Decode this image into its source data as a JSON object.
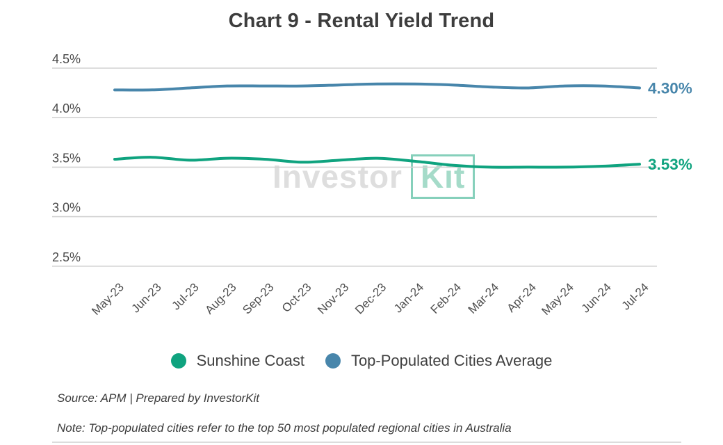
{
  "title": "Chart 9 - Rental Yield Trend",
  "watermark": {
    "part1": "Investor",
    "part2": "Kit"
  },
  "chart_data": {
    "type": "line",
    "title": "Chart 9 - Rental Yield Trend",
    "categories": [
      "May-23",
      "Jun-23",
      "Jul-23",
      "Aug-23",
      "Sep-23",
      "Oct-23",
      "Nov-23",
      "Dec-23",
      "Jan-24",
      "Feb-24",
      "Mar-24",
      "Apr-24",
      "May-24",
      "Jun-24",
      "Jul-24"
    ],
    "series": [
      {
        "name": "Sunshine Coast",
        "color": "#0fa37f",
        "end_label": "3.53%",
        "values": [
          3.58,
          3.6,
          3.57,
          3.59,
          3.58,
          3.55,
          3.57,
          3.59,
          3.56,
          3.52,
          3.5,
          3.5,
          3.5,
          3.51,
          3.53
        ]
      },
      {
        "name": "Top-Populated Cities Average",
        "color": "#4886ab",
        "end_label": "4.30%",
        "values": [
          4.28,
          4.28,
          4.3,
          4.32,
          4.32,
          4.32,
          4.33,
          4.34,
          4.34,
          4.33,
          4.31,
          4.3,
          4.32,
          4.32,
          4.3
        ]
      }
    ],
    "yticks": [
      {
        "label": "4.5%",
        "value": 4.5
      },
      {
        "label": "4.0%",
        "value": 4.0
      },
      {
        "label": "3.5%",
        "value": 3.5
      },
      {
        "label": "3.0%",
        "value": 3.0
      },
      {
        "label": "2.5%",
        "value": 2.5
      }
    ],
    "ylim": [
      2.5,
      4.5
    ],
    "xlabel": "",
    "ylabel": "",
    "grid": "horizontal",
    "legend_position": "bottom",
    "x_label_rotation": -45
  },
  "legend": {
    "items": [
      {
        "label": "Sunshine Coast",
        "color": "#0fa37f"
      },
      {
        "label": "Top-Populated Cities Average",
        "color": "#4886ab"
      }
    ]
  },
  "footer": {
    "source": "Source: APM | Prepared by InvestorKit",
    "note": "Note: Top-populated cities refer to the top 50 most populated regional cities in Australia"
  }
}
